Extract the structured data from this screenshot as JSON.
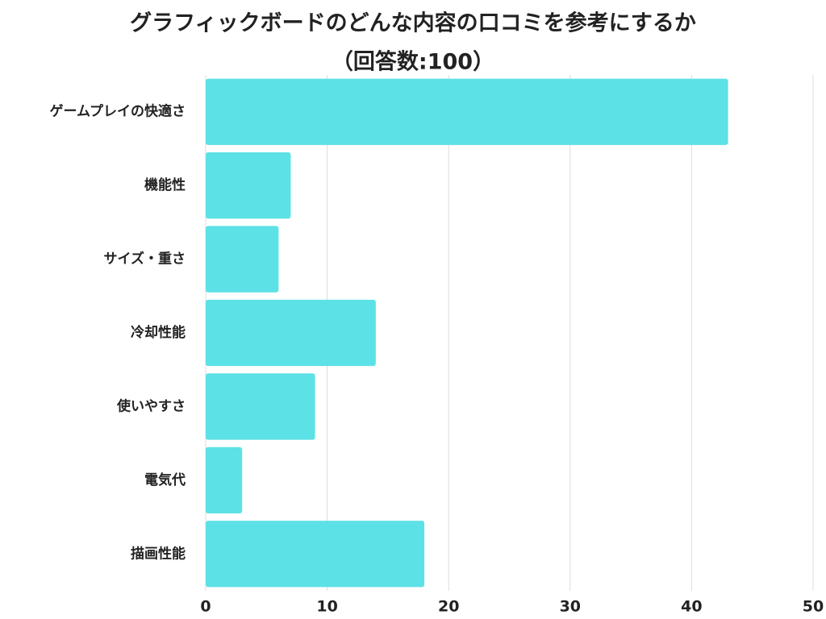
{
  "chart_data": {
    "type": "barh",
    "title": "グラフィックボードのどんな内容の口コミを参考にするか",
    "subtitle": "（回答数:100）",
    "categories": [
      "ゲームプレイの快適さ",
      "機能性",
      "サイズ・重さ",
      "冷却性能",
      "使いやすさ",
      "電気代",
      "描画性能"
    ],
    "values": [
      43,
      7,
      6,
      14,
      9,
      3,
      18
    ],
    "color": "#5ce1e6",
    "xlim": [
      0,
      50
    ],
    "xticks": [
      0,
      10,
      20,
      30,
      40,
      50
    ],
    "grid": true
  }
}
